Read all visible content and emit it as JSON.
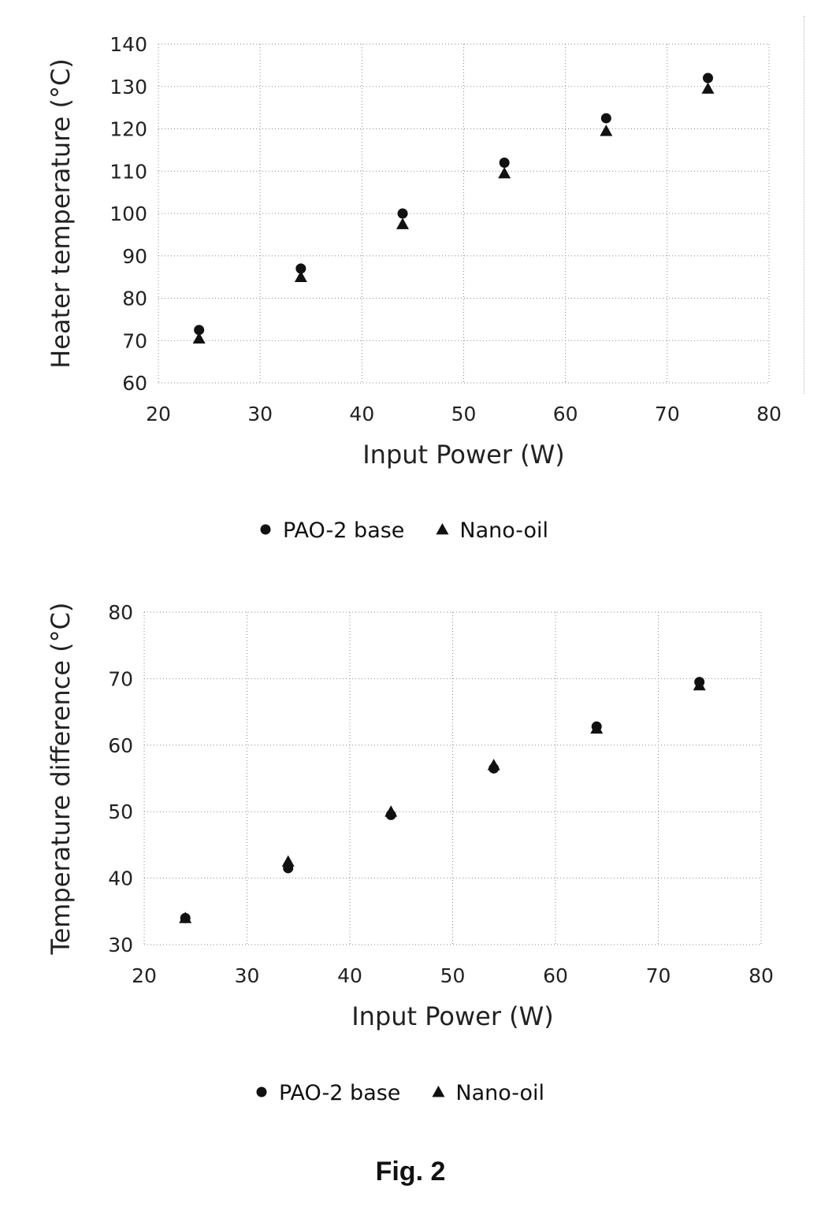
{
  "caption": "Fig. 2",
  "chart_data": [
    {
      "type": "scatter",
      "xlabel": "Input Power (W)",
      "ylabel": "Heater temperature (°C)",
      "xlim": [
        20,
        80
      ],
      "ylim": [
        60,
        140
      ],
      "xticks": [
        "20",
        "30",
        "40",
        "50",
        "60",
        "70",
        "80"
      ],
      "yticks": [
        "60",
        "70",
        "80",
        "90",
        "100",
        "110",
        "120",
        "130",
        "140"
      ],
      "grid": true,
      "legend_position": "bottom",
      "series": [
        {
          "name": "PAO-2 base",
          "marker": "circle",
          "x": [
            24,
            34,
            44,
            54,
            64,
            74
          ],
          "y": [
            72.5,
            87,
            100,
            112,
            122.5,
            132
          ]
        },
        {
          "name": "Nano-oil",
          "marker": "triangle",
          "x": [
            24,
            34,
            44,
            54,
            64,
            74
          ],
          "y": [
            70.5,
            85,
            97.5,
            109.5,
            119.5,
            129.5
          ]
        }
      ]
    },
    {
      "type": "scatter",
      "xlabel": "Input Power (W)",
      "ylabel": "Temperature difference (°C)",
      "xlim": [
        20,
        80
      ],
      "ylim": [
        30,
        80
      ],
      "xticks": [
        "20",
        "30",
        "40",
        "50",
        "60",
        "70",
        "80"
      ],
      "yticks": [
        "30",
        "40",
        "50",
        "60",
        "70",
        "80"
      ],
      "grid": true,
      "legend_position": "bottom",
      "series": [
        {
          "name": "PAO-2 base",
          "marker": "circle",
          "x": [
            24,
            34,
            44,
            54,
            64,
            74
          ],
          "y": [
            34,
            41.5,
            49.5,
            56.5,
            62.8,
            69.5
          ]
        },
        {
          "name": "Nano-oil",
          "marker": "triangle",
          "x": [
            24,
            34,
            44,
            54,
            64,
            74
          ],
          "y": [
            34,
            42.5,
            50,
            57,
            62.5,
            69
          ]
        }
      ]
    }
  ]
}
